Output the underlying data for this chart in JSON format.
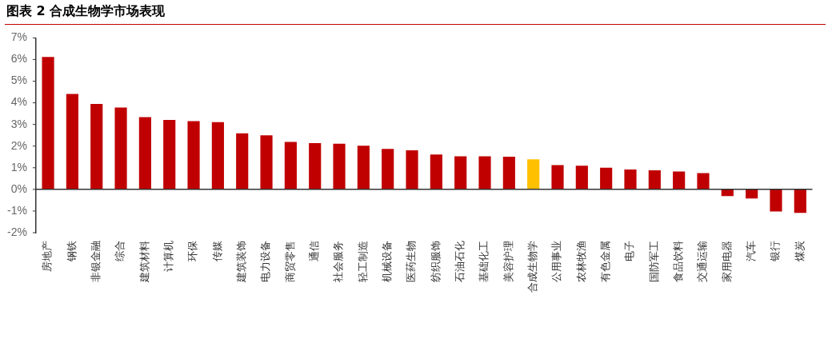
{
  "chart_data": {
    "type": "bar",
    "title": "图表 2 合成生物学市场表现",
    "categories": [
      "房地产",
      "钢铁",
      "非银金融",
      "综合",
      "建筑材料",
      "计算机",
      "环保",
      "传媒",
      "建筑装饰",
      "电力设备",
      "商贸零售",
      "通信",
      "社会服务",
      "轻工制造",
      "机械设备",
      "医药生物",
      "纺织服饰",
      "石油石化",
      "基础化工",
      "美容护理",
      "合成生物学",
      "公用事业",
      "农林牧渔",
      "有色金属",
      "电子",
      "国防军工",
      "食品饮料",
      "交通运输",
      "家用电器",
      "汽车",
      "银行",
      "煤炭"
    ],
    "values": [
      6.12,
      4.41,
      3.95,
      3.78,
      3.34,
      3.21,
      3.15,
      3.11,
      2.59,
      2.5,
      2.19,
      2.14,
      2.11,
      2.02,
      1.87,
      1.81,
      1.61,
      1.53,
      1.53,
      1.51,
      1.39,
      1.12,
      1.09,
      1.0,
      0.92,
      0.88,
      0.83,
      0.75,
      -0.31,
      -0.42,
      -1.02,
      -1.09
    ],
    "colors": [
      "#c00000",
      "#c00000",
      "#c00000",
      "#c00000",
      "#c00000",
      "#c00000",
      "#c00000",
      "#c00000",
      "#c00000",
      "#c00000",
      "#c00000",
      "#c00000",
      "#c00000",
      "#c00000",
      "#c00000",
      "#c00000",
      "#c00000",
      "#c00000",
      "#c00000",
      "#c00000",
      "#ffc000",
      "#c00000",
      "#c00000",
      "#c00000",
      "#c00000",
      "#c00000",
      "#c00000",
      "#c00000",
      "#c00000",
      "#c00000",
      "#c00000",
      "#c00000"
    ],
    "ylim": [
      -2,
      7
    ],
    "yticks": [
      {
        "value": -2,
        "label": "-2%"
      },
      {
        "value": -1,
        "label": "-1%"
      },
      {
        "value": 0,
        "label": "0%"
      },
      {
        "value": 1,
        "label": "1%"
      },
      {
        "value": 2,
        "label": "2%"
      },
      {
        "value": 3,
        "label": "3%"
      },
      {
        "value": 4,
        "label": "4%"
      },
      {
        "value": 5,
        "label": "5%"
      },
      {
        "value": 6,
        "label": "6%"
      },
      {
        "value": 7,
        "label": "7%"
      }
    ],
    "legend": false
  }
}
